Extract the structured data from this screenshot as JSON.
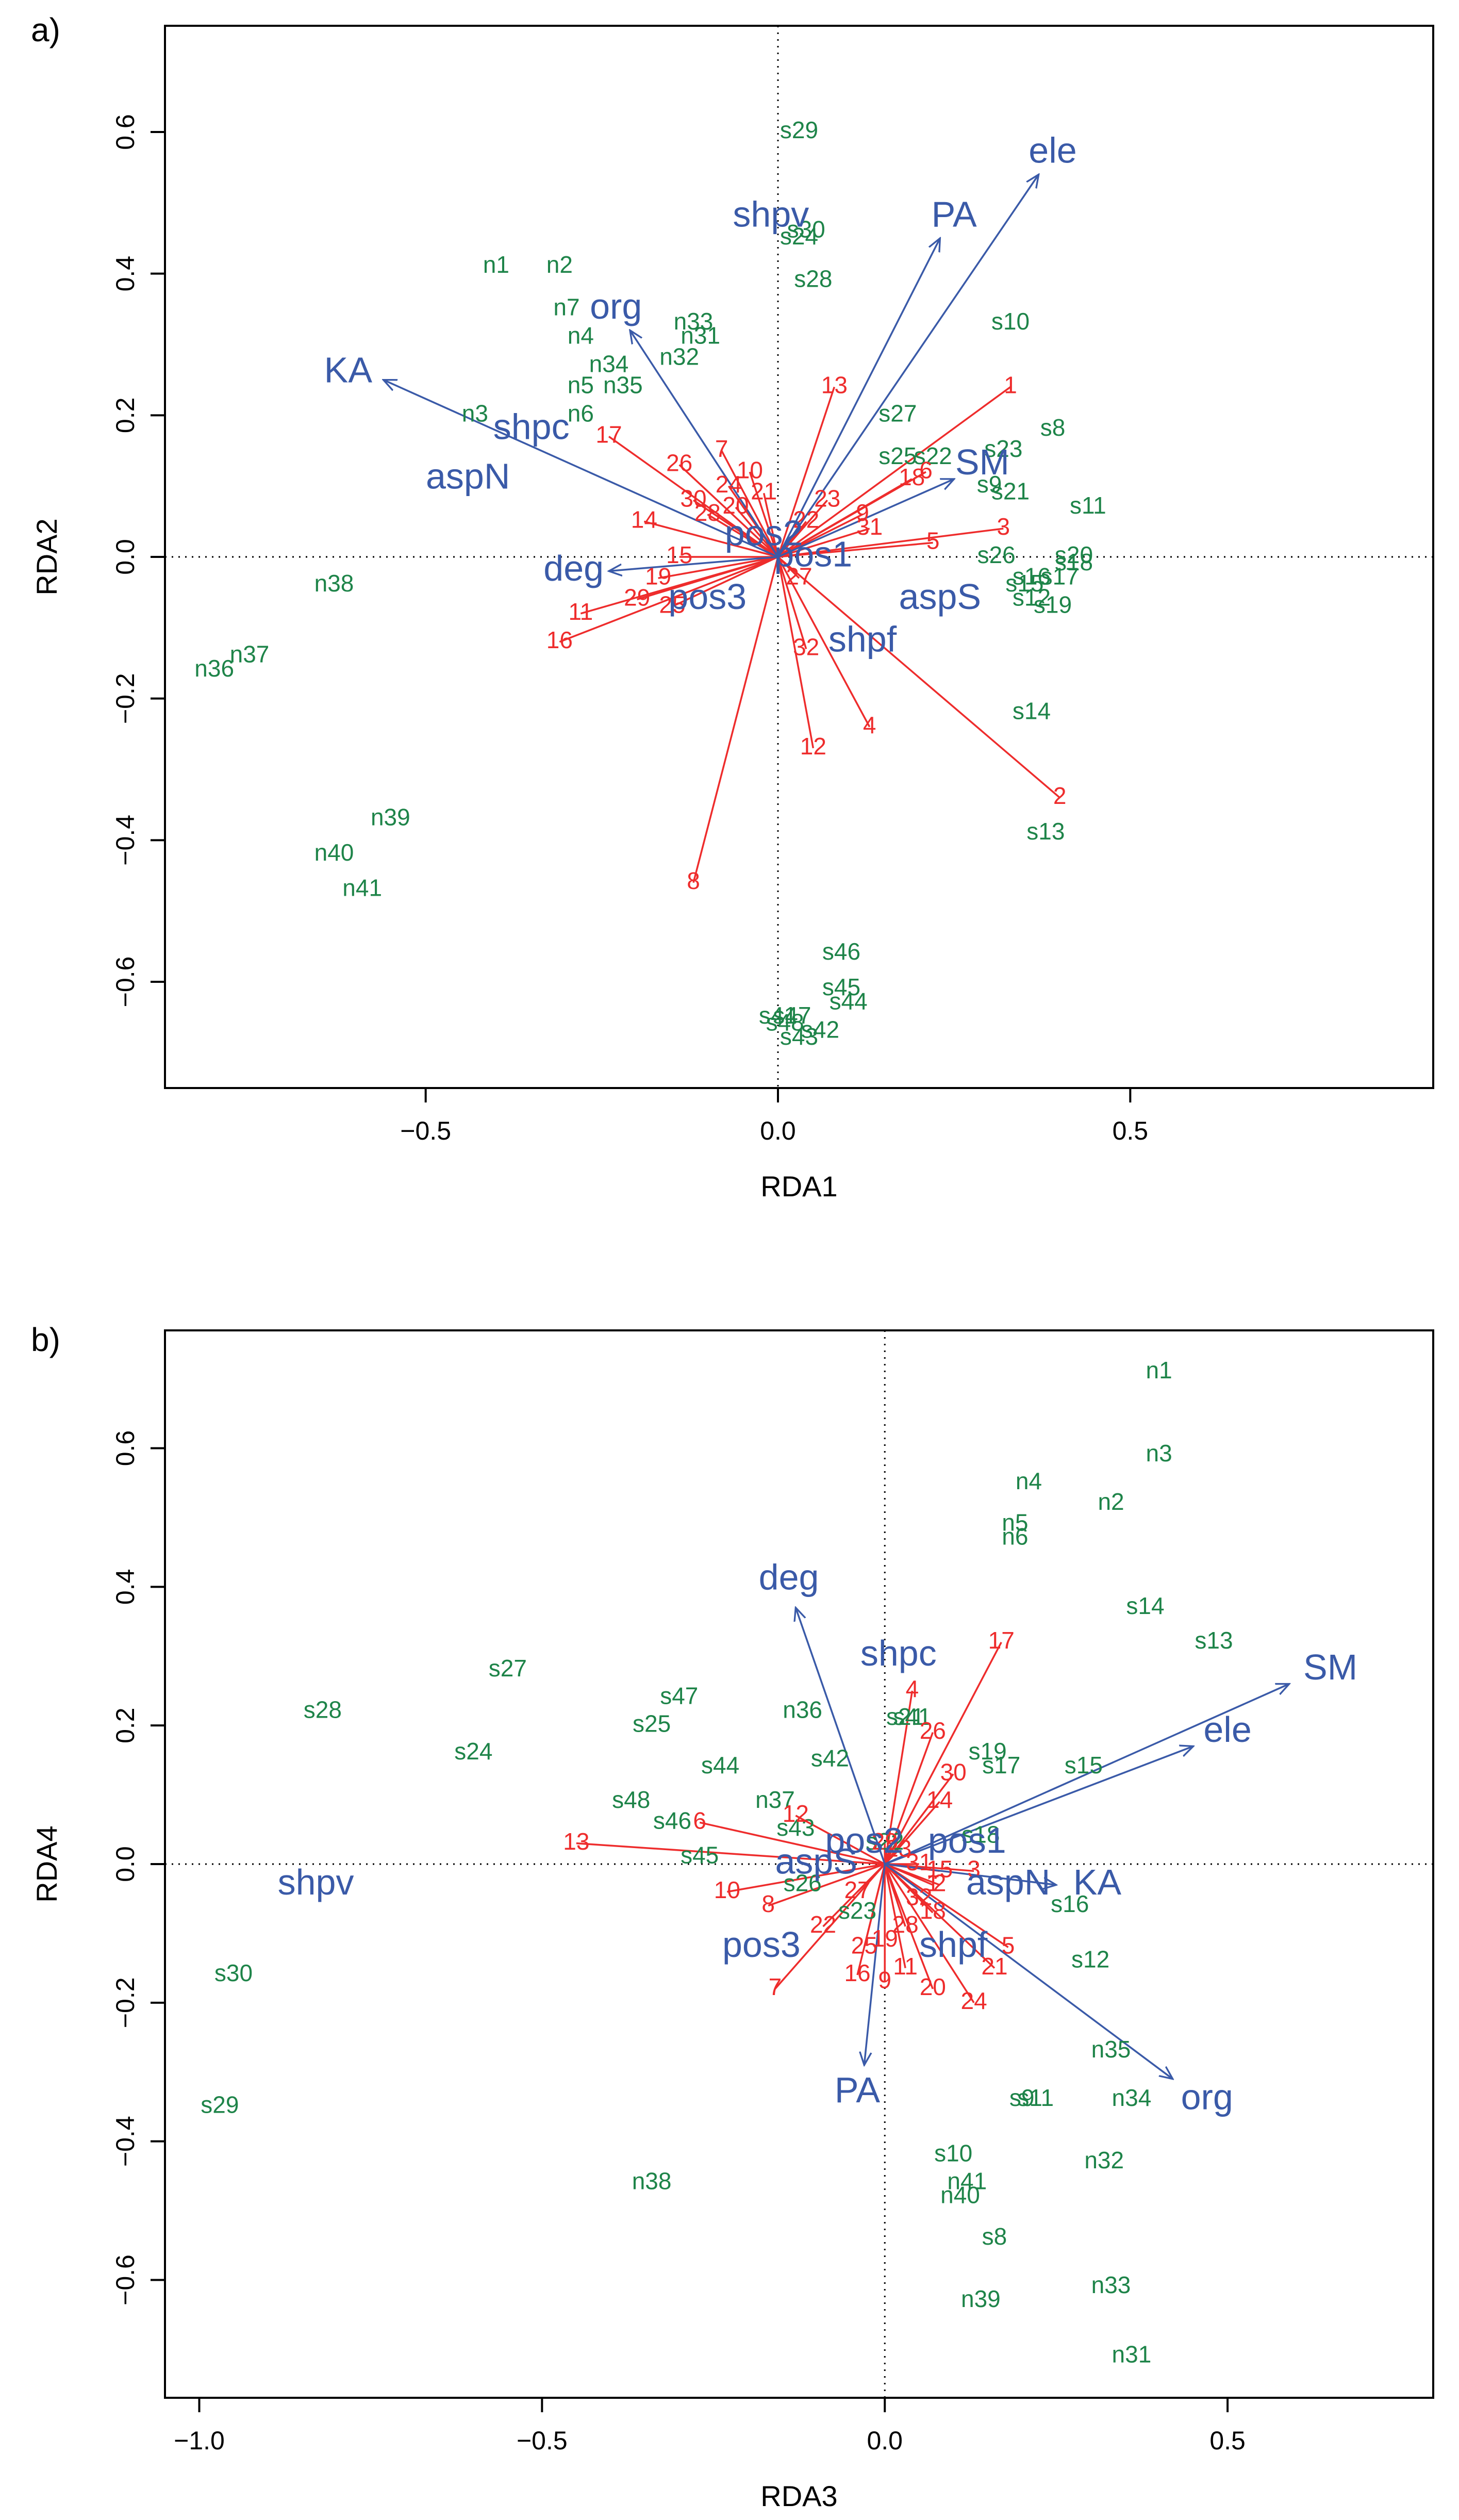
{
  "chart_data": [
    {
      "type": "scatter",
      "panel_label": "a)",
      "xlabel": "RDA1",
      "ylabel": "RDA2",
      "xlim": [
        -0.87,
        0.93
      ],
      "ylim": [
        -0.75,
        0.75
      ],
      "xticks": [
        -0.5,
        0.0,
        0.5
      ],
      "xtick_labels": [
        "−0.5",
        "0.0",
        "0.5"
      ],
      "yticks": [
        -0.6,
        -0.4,
        -0.2,
        0.0,
        0.2,
        0.4,
        0.6
      ],
      "ytick_labels": [
        "−0.6",
        "−0.4",
        "−0.2",
        "0.0",
        "0.2",
        "0.4",
        "0.6"
      ],
      "colors": {
        "sites": "#1e8449",
        "species": "#ee2c2c",
        "env": "#3a5aa8"
      },
      "sites": [
        {
          "label": "n1",
          "x": -0.4,
          "y": 0.41
        },
        {
          "label": "n2",
          "x": -0.31,
          "y": 0.41
        },
        {
          "label": "n3",
          "x": -0.43,
          "y": 0.2
        },
        {
          "label": "n4",
          "x": -0.28,
          "y": 0.31
        },
        {
          "label": "n5",
          "x": -0.28,
          "y": 0.24
        },
        {
          "label": "n6",
          "x": -0.28,
          "y": 0.2
        },
        {
          "label": "n7",
          "x": -0.3,
          "y": 0.35
        },
        {
          "label": "n31",
          "x": -0.11,
          "y": 0.31
        },
        {
          "label": "n32",
          "x": -0.14,
          "y": 0.28
        },
        {
          "label": "n33",
          "x": -0.12,
          "y": 0.33
        },
        {
          "label": "n34",
          "x": -0.24,
          "y": 0.27
        },
        {
          "label": "n35",
          "x": -0.22,
          "y": 0.24
        },
        {
          "label": "n36",
          "x": -0.8,
          "y": -0.16
        },
        {
          "label": "n37",
          "x": -0.75,
          "y": -0.14
        },
        {
          "label": "n38",
          "x": -0.63,
          "y": -0.04
        },
        {
          "label": "n39",
          "x": -0.55,
          "y": -0.37
        },
        {
          "label": "n40",
          "x": -0.63,
          "y": -0.42
        },
        {
          "label": "n41",
          "x": -0.59,
          "y": -0.47
        },
        {
          "label": "s8",
          "x": 0.39,
          "y": 0.18
        },
        {
          "label": "s9",
          "x": 0.3,
          "y": 0.1
        },
        {
          "label": "s10",
          "x": 0.33,
          "y": 0.33
        },
        {
          "label": "s11",
          "x": 0.44,
          "y": 0.07
        },
        {
          "label": "s12",
          "x": 0.36,
          "y": -0.06
        },
        {
          "label": "s13",
          "x": 0.38,
          "y": -0.39
        },
        {
          "label": "s14",
          "x": 0.36,
          "y": -0.22
        },
        {
          "label": "s15",
          "x": 0.35,
          "y": -0.04
        },
        {
          "label": "s16",
          "x": 0.36,
          "y": -0.03
        },
        {
          "label": "s17",
          "x": 0.4,
          "y": -0.03
        },
        {
          "label": "s18",
          "x": 0.42,
          "y": -0.01
        },
        {
          "label": "s19",
          "x": 0.39,
          "y": -0.07
        },
        {
          "label": "s20",
          "x": 0.42,
          "y": 0.0
        },
        {
          "label": "s21",
          "x": 0.33,
          "y": 0.09
        },
        {
          "label": "s22",
          "x": 0.22,
          "y": 0.14
        },
        {
          "label": "s23",
          "x": 0.32,
          "y": 0.15
        },
        {
          "label": "s24",
          "x": 0.03,
          "y": 0.45
        },
        {
          "label": "s25",
          "x": 0.17,
          "y": 0.14
        },
        {
          "label": "s26",
          "x": 0.31,
          "y": 0.0
        },
        {
          "label": "s27",
          "x": 0.17,
          "y": 0.2
        },
        {
          "label": "s28",
          "x": 0.05,
          "y": 0.39
        },
        {
          "label": "s29",
          "x": 0.03,
          "y": 0.6
        },
        {
          "label": "s30",
          "x": 0.04,
          "y": 0.46
        },
        {
          "label": "s41",
          "x": 0.0,
          "y": -0.65
        },
        {
          "label": "s42",
          "x": 0.06,
          "y": -0.67
        },
        {
          "label": "s43",
          "x": 0.03,
          "y": -0.68
        },
        {
          "label": "s44",
          "x": 0.1,
          "y": -0.63
        },
        {
          "label": "s45",
          "x": 0.09,
          "y": -0.61
        },
        {
          "label": "s46",
          "x": 0.09,
          "y": -0.56
        },
        {
          "label": "s47",
          "x": 0.02,
          "y": -0.65
        },
        {
          "label": "s48",
          "x": 0.01,
          "y": -0.66
        }
      ],
      "species": [
        {
          "label": "1",
          "x": 0.33,
          "y": 0.24
        },
        {
          "label": "2",
          "x": 0.4,
          "y": -0.34
        },
        {
          "label": "3",
          "x": 0.32,
          "y": 0.04
        },
        {
          "label": "4",
          "x": 0.13,
          "y": -0.24
        },
        {
          "label": "5",
          "x": 0.22,
          "y": 0.02
        },
        {
          "label": "6",
          "x": 0.21,
          "y": 0.12
        },
        {
          "label": "7",
          "x": -0.08,
          "y": 0.15
        },
        {
          "label": "8",
          "x": -0.12,
          "y": -0.46
        },
        {
          "label": "9",
          "x": 0.12,
          "y": 0.06
        },
        {
          "label": "10",
          "x": -0.04,
          "y": 0.12
        },
        {
          "label": "11",
          "x": -0.28,
          "y": -0.08
        },
        {
          "label": "12",
          "x": 0.05,
          "y": -0.27
        },
        {
          "label": "13",
          "x": 0.08,
          "y": 0.24
        },
        {
          "label": "14",
          "x": -0.19,
          "y": 0.05
        },
        {
          "label": "15",
          "x": -0.14,
          "y": 0.0
        },
        {
          "label": "16",
          "x": -0.31,
          "y": -0.12
        },
        {
          "label": "17",
          "x": -0.24,
          "y": 0.17
        },
        {
          "label": "18",
          "x": 0.19,
          "y": 0.11
        },
        {
          "label": "19",
          "x": -0.17,
          "y": -0.03
        },
        {
          "label": "20",
          "x": -0.06,
          "y": 0.07
        },
        {
          "label": "21",
          "x": -0.02,
          "y": 0.09
        },
        {
          "label": "22",
          "x": 0.04,
          "y": 0.05
        },
        {
          "label": "23",
          "x": 0.07,
          "y": 0.08
        },
        {
          "label": "24",
          "x": -0.07,
          "y": 0.1
        },
        {
          "label": "25",
          "x": -0.15,
          "y": -0.07
        },
        {
          "label": "26",
          "x": -0.14,
          "y": 0.13
        },
        {
          "label": "27",
          "x": 0.03,
          "y": -0.03
        },
        {
          "label": "28",
          "x": -0.1,
          "y": 0.06
        },
        {
          "label": "29",
          "x": -0.2,
          "y": -0.06
        },
        {
          "label": "30",
          "x": -0.12,
          "y": 0.08
        },
        {
          "label": "31",
          "x": 0.13,
          "y": 0.04
        },
        {
          "label": "32",
          "x": 0.04,
          "y": -0.13
        }
      ],
      "env": [
        {
          "label": "ele",
          "x": 0.37,
          "y": 0.54,
          "lx": 0.39,
          "ly": 0.57
        },
        {
          "label": "PA",
          "x": 0.23,
          "y": 0.45,
          "lx": 0.25,
          "ly": 0.48
        },
        {
          "label": "SM",
          "x": 0.25,
          "y": 0.11,
          "lx": 0.29,
          "ly": 0.13
        },
        {
          "label": "KA",
          "x": -0.56,
          "y": 0.25,
          "lx": -0.61,
          "ly": 0.26
        },
        {
          "label": "org",
          "x": -0.21,
          "y": 0.32,
          "lx": -0.23,
          "ly": 0.35
        },
        {
          "label": "deg",
          "x": -0.24,
          "y": -0.02,
          "lx": -0.29,
          "ly": -0.02
        },
        {
          "label": "shpv",
          "x": 0.0,
          "y": 0.0,
          "lx": -0.01,
          "ly": 0.48
        },
        {
          "label": "shpc",
          "x": 0.0,
          "y": 0.0,
          "lx": -0.35,
          "ly": 0.18
        },
        {
          "label": "aspN",
          "x": 0.0,
          "y": 0.0,
          "lx": -0.44,
          "ly": 0.11
        },
        {
          "label": "pos2",
          "x": 0.0,
          "y": 0.0,
          "lx": -0.02,
          "ly": 0.03
        },
        {
          "label": "pos1",
          "x": 0.0,
          "y": 0.0,
          "lx": 0.05,
          "ly": 0.0
        },
        {
          "label": "pos3",
          "x": 0.0,
          "y": 0.0,
          "lx": -0.1,
          "ly": -0.06
        },
        {
          "label": "aspS",
          "x": 0.0,
          "y": 0.0,
          "lx": 0.23,
          "ly": -0.06
        },
        {
          "label": "shpf",
          "x": 0.0,
          "y": 0.0,
          "lx": 0.12,
          "ly": -0.12
        }
      ]
    },
    {
      "type": "scatter",
      "panel_label": "b)",
      "xlabel": "RDA3",
      "ylabel": "RDA4",
      "xlim": [
        -1.05,
        0.8
      ],
      "ylim": [
        -0.77,
        0.77
      ],
      "xticks": [
        -1.0,
        -0.5,
        0.0,
        0.5
      ],
      "xtick_labels": [
        "−1.0",
        "−0.5",
        "0.0",
        "0.5"
      ],
      "yticks": [
        -0.6,
        -0.4,
        -0.2,
        0.0,
        0.2,
        0.4,
        0.6
      ],
      "ytick_labels": [
        "−0.6",
        "−0.4",
        "−0.2",
        "0.0",
        "0.2",
        "0.4",
        "0.6"
      ],
      "colors": {
        "sites": "#1e8449",
        "species": "#ee2c2c",
        "env": "#3a5aa8"
      },
      "sites": [
        {
          "label": "n1",
          "x": 0.4,
          "y": 0.71
        },
        {
          "label": "n2",
          "x": 0.33,
          "y": 0.52
        },
        {
          "label": "n3",
          "x": 0.4,
          "y": 0.59
        },
        {
          "label": "n4",
          "x": 0.21,
          "y": 0.55
        },
        {
          "label": "n5",
          "x": 0.19,
          "y": 0.49
        },
        {
          "label": "n6",
          "x": 0.19,
          "y": 0.47
        },
        {
          "label": "n31",
          "x": 0.36,
          "y": -0.71
        },
        {
          "label": "n32",
          "x": 0.32,
          "y": -0.43
        },
        {
          "label": "n33",
          "x": 0.33,
          "y": -0.61
        },
        {
          "label": "n34",
          "x": 0.36,
          "y": -0.34
        },
        {
          "label": "n35",
          "x": 0.33,
          "y": -0.27
        },
        {
          "label": "n36",
          "x": -0.12,
          "y": 0.22
        },
        {
          "label": "n37",
          "x": -0.16,
          "y": 0.09
        },
        {
          "label": "n38",
          "x": -0.34,
          "y": -0.46
        },
        {
          "label": "n39",
          "x": 0.14,
          "y": -0.63
        },
        {
          "label": "n40",
          "x": 0.11,
          "y": -0.48
        },
        {
          "label": "n41",
          "x": 0.12,
          "y": -0.46
        },
        {
          "label": "s8",
          "x": 0.16,
          "y": -0.54
        },
        {
          "label": "s9",
          "x": 0.2,
          "y": -0.34
        },
        {
          "label": "s10",
          "x": 0.1,
          "y": -0.42
        },
        {
          "label": "s11",
          "x": 0.22,
          "y": -0.34
        },
        {
          "label": "s12",
          "x": 0.3,
          "y": -0.14
        },
        {
          "label": "s13",
          "x": 0.48,
          "y": 0.32
        },
        {
          "label": "s14",
          "x": 0.38,
          "y": 0.37
        },
        {
          "label": "s15",
          "x": 0.29,
          "y": 0.14
        },
        {
          "label": "s16",
          "x": 0.27,
          "y": -0.06
        },
        {
          "label": "s17",
          "x": 0.17,
          "y": 0.14
        },
        {
          "label": "s18",
          "x": 0.14,
          "y": 0.04
        },
        {
          "label": "s19",
          "x": 0.15,
          "y": 0.16
        },
        {
          "label": "s21",
          "x": 0.03,
          "y": 0.21
        },
        {
          "label": "s22",
          "x": 0.0,
          "y": 0.03
        },
        {
          "label": "s23",
          "x": -0.04,
          "y": -0.07
        },
        {
          "label": "s24",
          "x": -0.6,
          "y": 0.16
        },
        {
          "label": "s25",
          "x": -0.34,
          "y": 0.2
        },
        {
          "label": "s26",
          "x": -0.12,
          "y": -0.03
        },
        {
          "label": "s27",
          "x": -0.55,
          "y": 0.28
        },
        {
          "label": "s28",
          "x": -0.82,
          "y": 0.22
        },
        {
          "label": "s29",
          "x": -0.97,
          "y": -0.35
        },
        {
          "label": "s30",
          "x": -0.95,
          "y": -0.16
        },
        {
          "label": "s41",
          "x": 0.04,
          "y": 0.21
        },
        {
          "label": "s42",
          "x": -0.08,
          "y": 0.15
        },
        {
          "label": "s43",
          "x": -0.13,
          "y": 0.05
        },
        {
          "label": "s44",
          "x": -0.24,
          "y": 0.14
        },
        {
          "label": "s45",
          "x": -0.27,
          "y": 0.01
        },
        {
          "label": "s46",
          "x": -0.31,
          "y": 0.06
        },
        {
          "label": "s47",
          "x": -0.3,
          "y": 0.24
        },
        {
          "label": "s48",
          "x": -0.37,
          "y": 0.09
        }
      ],
      "species": [
        {
          "label": "1",
          "x": 0.07,
          "y": -0.03
        },
        {
          "label": "2",
          "x": 0.08,
          "y": -0.03
        },
        {
          "label": "3",
          "x": 0.13,
          "y": -0.01
        },
        {
          "label": "4",
          "x": 0.04,
          "y": 0.25
        },
        {
          "label": "5",
          "x": 0.18,
          "y": -0.12
        },
        {
          "label": "6",
          "x": -0.27,
          "y": 0.06
        },
        {
          "label": "7",
          "x": -0.16,
          "y": -0.18
        },
        {
          "label": "8",
          "x": -0.17,
          "y": -0.06
        },
        {
          "label": "9",
          "x": 0.0,
          "y": -0.17
        },
        {
          "label": "10",
          "x": -0.23,
          "y": -0.04
        },
        {
          "label": "11",
          "x": 0.03,
          "y": -0.15
        },
        {
          "label": "12",
          "x": -0.13,
          "y": 0.07
        },
        {
          "label": "13",
          "x": -0.45,
          "y": 0.03
        },
        {
          "label": "14",
          "x": 0.08,
          "y": 0.09
        },
        {
          "label": "15",
          "x": 0.08,
          "y": -0.01
        },
        {
          "label": "16",
          "x": -0.04,
          "y": -0.16
        },
        {
          "label": "17",
          "x": 0.17,
          "y": 0.32
        },
        {
          "label": "18",
          "x": 0.07,
          "y": -0.07
        },
        {
          "label": "19",
          "x": 0.0,
          "y": -0.11
        },
        {
          "label": "20",
          "x": 0.07,
          "y": -0.18
        },
        {
          "label": "21",
          "x": 0.16,
          "y": -0.15
        },
        {
          "label": "22",
          "x": -0.09,
          "y": -0.09
        },
        {
          "label": "23",
          "x": 0.02,
          "y": 0.02
        },
        {
          "label": "24",
          "x": 0.13,
          "y": -0.2
        },
        {
          "label": "25",
          "x": -0.03,
          "y": -0.12
        },
        {
          "label": "26",
          "x": 0.07,
          "y": 0.19
        },
        {
          "label": "27",
          "x": -0.04,
          "y": -0.04
        },
        {
          "label": "28",
          "x": 0.03,
          "y": -0.09
        },
        {
          "label": "29",
          "x": 0.0,
          "y": 0.03
        },
        {
          "label": "30",
          "x": 0.1,
          "y": 0.13
        },
        {
          "label": "31",
          "x": 0.05,
          "y": 0.0
        },
        {
          "label": "32",
          "x": 0.05,
          "y": -0.05
        }
      ],
      "env": [
        {
          "label": "SM",
          "x": 0.59,
          "y": 0.26,
          "lx": 0.65,
          "ly": 0.28
        },
        {
          "label": "ele",
          "x": 0.45,
          "y": 0.17,
          "lx": 0.5,
          "ly": 0.19
        },
        {
          "label": "org",
          "x": 0.42,
          "y": -0.31,
          "lx": 0.47,
          "ly": -0.34
        },
        {
          "label": "KA",
          "x": 0.25,
          "y": -0.03,
          "lx": 0.31,
          "ly": -0.03
        },
        {
          "label": "deg",
          "x": -0.13,
          "y": 0.37,
          "lx": -0.14,
          "ly": 0.41
        },
        {
          "label": "PA",
          "x": -0.03,
          "y": -0.29,
          "lx": -0.04,
          "ly": -0.33
        },
        {
          "label": "shpc",
          "x": 0.0,
          "y": 0.0,
          "lx": 0.02,
          "ly": 0.3
        },
        {
          "label": "shpv",
          "x": 0.0,
          "y": 0.0,
          "lx": -0.83,
          "ly": -0.03
        },
        {
          "label": "pos2",
          "x": 0.0,
          "y": 0.0,
          "lx": -0.03,
          "ly": 0.03
        },
        {
          "label": "pos1",
          "x": 0.0,
          "y": 0.0,
          "lx": 0.12,
          "ly": 0.03
        },
        {
          "label": "aspS",
          "x": 0.0,
          "y": 0.0,
          "lx": -0.1,
          "ly": 0.0
        },
        {
          "label": "aspN",
          "x": 0.0,
          "y": 0.0,
          "lx": 0.18,
          "ly": -0.03
        },
        {
          "label": "shpf",
          "x": 0.0,
          "y": 0.0,
          "lx": 0.1,
          "ly": -0.12
        },
        {
          "label": "pos3",
          "x": 0.0,
          "y": 0.0,
          "lx": -0.18,
          "ly": -0.12
        }
      ]
    }
  ]
}
